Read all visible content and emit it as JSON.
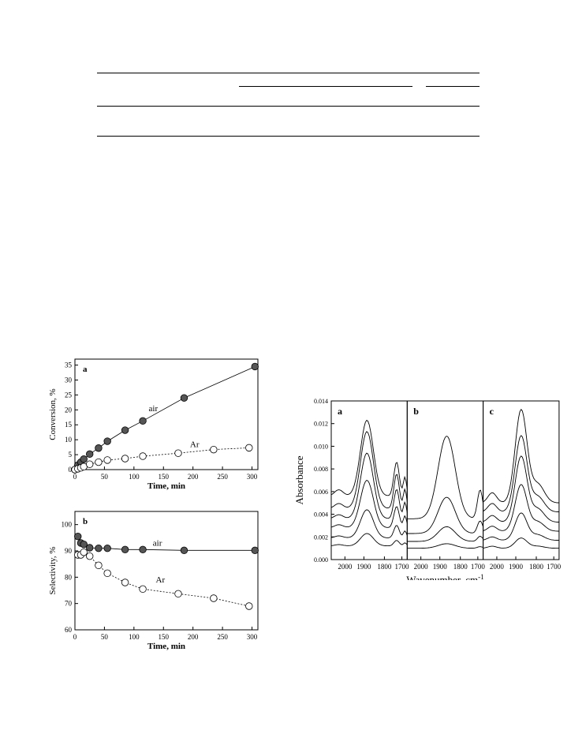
{
  "chart_data": [
    {
      "type": "scatter",
      "panel_label": "a",
      "xlabel": "Time, min",
      "ylabel": "Conversion, %",
      "xlim": [
        0,
        310
      ],
      "ylim": [
        0,
        37
      ],
      "xticks": [
        0,
        50,
        100,
        150,
        200,
        250,
        300
      ],
      "yticks": [
        0,
        5,
        10,
        15,
        20,
        25,
        30,
        35
      ],
      "series": [
        {
          "name": "air",
          "marker": "filled",
          "line": "solid",
          "x": [
            0,
            5,
            10,
            15,
            25,
            40,
            55,
            85,
            115,
            185,
            305
          ],
          "y": [
            0,
            1.5,
            2.5,
            3.5,
            5.2,
            7.2,
            9.5,
            13.2,
            16.3,
            24.0,
            34.5
          ]
        },
        {
          "name": "Ar",
          "marker": "open",
          "line": "dotted",
          "x": [
            0,
            5,
            10,
            15,
            25,
            40,
            55,
            85,
            115,
            175,
            235,
            295
          ],
          "y": [
            0,
            0.3,
            0.6,
            1.0,
            1.8,
            2.5,
            3.2,
            3.7,
            4.5,
            5.5,
            6.7,
            7.3
          ]
        }
      ]
    },
    {
      "type": "scatter",
      "panel_label": "b",
      "xlabel": "Time, min",
      "ylabel": "Selectivity, %",
      "xlim": [
        0,
        310
      ],
      "ylim": [
        60,
        105
      ],
      "xticks": [
        0,
        50,
        100,
        150,
        200,
        250,
        300
      ],
      "yticks": [
        60,
        70,
        80,
        90,
        100
      ],
      "series": [
        {
          "name": "air",
          "marker": "filled",
          "line": "solid",
          "x": [
            5,
            10,
            15,
            25,
            40,
            55,
            85,
            115,
            185,
            305
          ],
          "y": [
            95.5,
            93,
            92.5,
            91.2,
            91,
            91,
            90.5,
            90.5,
            90.2,
            90.2
          ]
        },
        {
          "name": "Ar",
          "marker": "open",
          "line": "dotted",
          "x": [
            5,
            10,
            15,
            25,
            40,
            55,
            85,
            115,
            175,
            235,
            295
          ],
          "y": [
            88.5,
            88.5,
            89.5,
            88,
            84.5,
            81.5,
            78,
            75.5,
            73.7,
            72,
            69
          ]
        }
      ]
    },
    {
      "type": "line",
      "ylabel": "Absorbance",
      "xlabel": "Wavenumber, cm",
      "xlabel_sup": "-1",
      "ylim": [
        0,
        0.014
      ],
      "yticks": [
        "0.000",
        "0.002",
        "0.004",
        "0.006",
        "0.008",
        "0.010",
        "0.012",
        "0.014"
      ],
      "xticks": [
        "2000",
        "1900",
        "1800",
        "1700"
      ],
      "panels": [
        {
          "label": "a",
          "baselines": [
            0.0012,
            0.0019,
            0.0028,
            0.0036,
            0.0045,
            0.0056
          ],
          "peaks": [
            0.0011,
            0.0025,
            0.0042,
            0.0058,
            0.0068,
            0.0067
          ]
        },
        {
          "label": "b",
          "baselines": [
            0.001,
            0.0016,
            0.0023,
            0.0036
          ],
          "peaks": [
            0.0004,
            0.0013,
            0.0032,
            0.0073
          ]
        },
        {
          "label": "c",
          "baselines": [
            0.001,
            0.0017,
            0.0025,
            0.0033,
            0.0042,
            0.005
          ],
          "peaks": [
            0.0009,
            0.0024,
            0.0041,
            0.0058,
            0.0067,
            0.0082
          ]
        }
      ]
    }
  ]
}
